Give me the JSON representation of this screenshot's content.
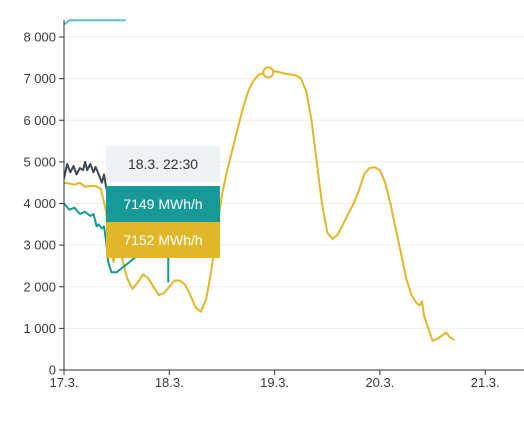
{
  "colors": {
    "actual": "#179a97",
    "forecast": "#e1b72a",
    "dark": "#3d4852",
    "light": "#5bbfc0",
    "grid": "#eeeeee",
    "axis": "#333333"
  },
  "tooltip": {
    "date": "18.3. 22:30",
    "value_actual": "7149 MWh/h",
    "value_forecast": "7152 MWh/h"
  },
  "chart_data": {
    "type": "line",
    "xlabel": "",
    "ylabel": "",
    "xlim": [
      0,
      4.5
    ],
    "ylim": [
      0,
      8000
    ],
    "x_ticks": [
      {
        "value": 0,
        "label": "17.3."
      },
      {
        "value": 1,
        "label": "18.3."
      },
      {
        "value": 2,
        "label": "19.3."
      },
      {
        "value": 3,
        "label": "20.3."
      },
      {
        "value": 4,
        "label": "21.3."
      }
    ],
    "y_ticks": [
      {
        "value": 0,
        "label": "0"
      },
      {
        "value": 1000,
        "label": "1 000"
      },
      {
        "value": 2000,
        "label": "2 000"
      },
      {
        "value": 3000,
        "label": "3 000"
      },
      {
        "value": 4000,
        "label": "4 000"
      },
      {
        "value": 5000,
        "label": "5 000"
      },
      {
        "value": 6000,
        "label": "6 000"
      },
      {
        "value": 7000,
        "label": "7 000"
      },
      {
        "value": 8000,
        "label": "8 000"
      }
    ],
    "grid": true,
    "highlight": {
      "x": 1.94,
      "y": 7149
    },
    "series": [
      {
        "color": "#e1b72a",
        "points": [
          [
            0,
            4500
          ],
          [
            0.05,
            4480
          ],
          [
            0.1,
            4450
          ],
          [
            0.15,
            4500
          ],
          [
            0.2,
            4400
          ],
          [
            0.25,
            4420
          ],
          [
            0.3,
            4420
          ],
          [
            0.35,
            4350
          ],
          [
            0.4,
            3800
          ],
          [
            0.43,
            3000
          ],
          [
            0.47,
            2600
          ],
          [
            0.5,
            2900
          ],
          [
            0.55,
            2700
          ],
          [
            0.6,
            2200
          ],
          [
            0.65,
            1950
          ],
          [
            0.7,
            2100
          ],
          [
            0.75,
            2300
          ],
          [
            0.8,
            2200
          ],
          [
            0.85,
            2000
          ],
          [
            0.9,
            1800
          ],
          [
            0.95,
            1850
          ],
          [
            1.0,
            2000
          ],
          [
            1.05,
            2150
          ],
          [
            1.1,
            2150
          ],
          [
            1.15,
            2050
          ],
          [
            1.2,
            1800
          ],
          [
            1.25,
            1500
          ],
          [
            1.3,
            1400
          ],
          [
            1.35,
            1700
          ],
          [
            1.4,
            2400
          ],
          [
            1.45,
            3300
          ],
          [
            1.5,
            4200
          ],
          [
            1.55,
            4800
          ],
          [
            1.6,
            5300
          ],
          [
            1.65,
            5800
          ],
          [
            1.7,
            6300
          ],
          [
            1.75,
            6700
          ],
          [
            1.8,
            6950
          ],
          [
            1.85,
            7100
          ],
          [
            1.9,
            7130
          ],
          [
            1.94,
            7152
          ],
          [
            2.0,
            7180
          ],
          [
            2.05,
            7150
          ],
          [
            2.1,
            7120
          ],
          [
            2.15,
            7100
          ],
          [
            2.2,
            7080
          ],
          [
            2.25,
            7000
          ],
          [
            2.3,
            6700
          ],
          [
            2.35,
            6000
          ],
          [
            2.4,
            5000
          ],
          [
            2.45,
            4000
          ],
          [
            2.5,
            3300
          ],
          [
            2.55,
            3150
          ],
          [
            2.6,
            3250
          ],
          [
            2.65,
            3500
          ],
          [
            2.7,
            3750
          ],
          [
            2.75,
            4000
          ],
          [
            2.8,
            4300
          ],
          [
            2.85,
            4700
          ],
          [
            2.9,
            4850
          ],
          [
            2.95,
            4870
          ],
          [
            3.0,
            4800
          ],
          [
            3.05,
            4500
          ],
          [
            3.1,
            4000
          ],
          [
            3.15,
            3400
          ],
          [
            3.2,
            2800
          ],
          [
            3.25,
            2200
          ],
          [
            3.3,
            1800
          ],
          [
            3.35,
            1600
          ],
          [
            3.38,
            1550
          ],
          [
            3.4,
            1650
          ],
          [
            3.42,
            1300
          ],
          [
            3.46,
            1000
          ],
          [
            3.5,
            700
          ],
          [
            3.55,
            750
          ],
          [
            3.6,
            850
          ],
          [
            3.63,
            900
          ],
          [
            3.66,
            800
          ],
          [
            3.7,
            730
          ]
        ]
      },
      {
        "color": "#179a97",
        "points": [
          [
            0,
            4000
          ],
          [
            0.05,
            3850
          ],
          [
            0.1,
            3900
          ],
          [
            0.15,
            3750
          ],
          [
            0.2,
            3800
          ],
          [
            0.25,
            3700
          ],
          [
            0.28,
            3750
          ],
          [
            0.31,
            3450
          ],
          [
            0.33,
            3500
          ],
          [
            0.36,
            3400
          ],
          [
            0.38,
            3450
          ],
          [
            0.4,
            3100
          ],
          [
            0.42,
            2600
          ],
          [
            0.45,
            2350
          ],
          [
            0.5,
            2350
          ],
          [
            0.55,
            2450
          ],
          [
            0.6,
            2550
          ],
          [
            0.65,
            2650
          ],
          [
            0.7,
            2750
          ]
        ]
      },
      {
        "color": "#3d4852",
        "points": [
          [
            0,
            4600
          ],
          [
            0.03,
            4950
          ],
          [
            0.06,
            4750
          ],
          [
            0.09,
            4900
          ],
          [
            0.12,
            4700
          ],
          [
            0.15,
            4850
          ],
          [
            0.18,
            4800
          ],
          [
            0.2,
            5000
          ],
          [
            0.22,
            4800
          ],
          [
            0.25,
            4950
          ],
          [
            0.28,
            4750
          ],
          [
            0.3,
            4880
          ],
          [
            0.33,
            4700
          ],
          [
            0.36,
            4500
          ],
          [
            0.38,
            4700
          ],
          [
            0.4,
            4400
          ],
          [
            0.42,
            4200
          ],
          [
            0.45,
            4300
          ],
          [
            0.48,
            4200
          ],
          [
            0.5,
            4250
          ]
        ]
      },
      {
        "color": "#5bbfc0",
        "points": [
          [
            0,
            8300
          ],
          [
            0.05,
            8400
          ],
          [
            0.58,
            8400
          ]
        ]
      }
    ],
    "crosshair_segment": {
      "x": 0.99,
      "y_from": 2100,
      "y_to": 3600,
      "color": "#179a97"
    }
  }
}
